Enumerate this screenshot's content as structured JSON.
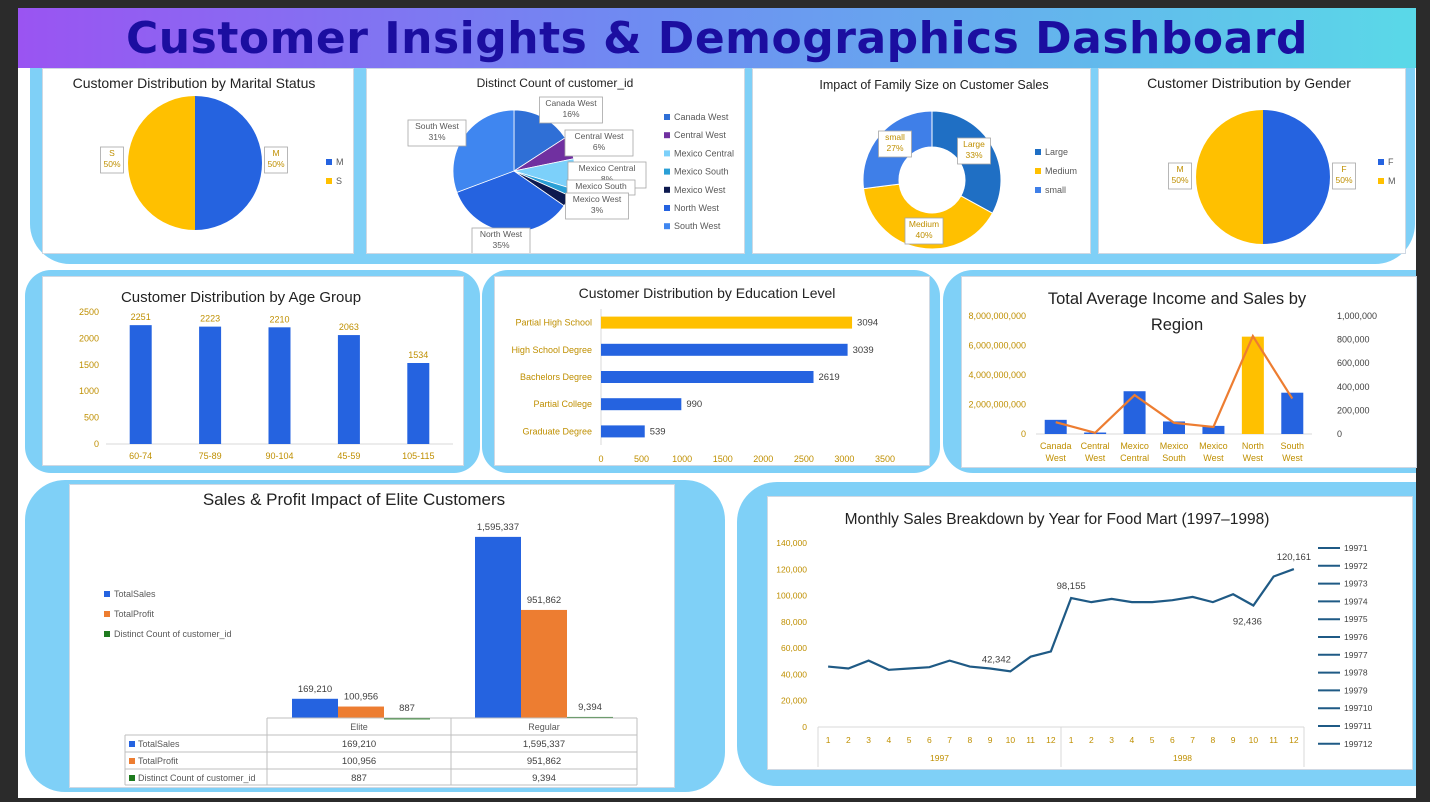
{
  "header": {
    "title": "Customer Insights & Demographics Dashboard"
  },
  "colors": {
    "blue": "#2563e0",
    "orange": "#ed7d31",
    "gold": "#ffc000",
    "green": "#1e7a1e",
    "navy": "#1f5a85"
  },
  "chart_data": [
    {
      "id": "marital",
      "type": "pie",
      "title": "Customer Distribution by Marital Status",
      "labels": [
        "M",
        "S"
      ],
      "values": [
        50,
        50
      ],
      "data_labels": [
        {
          "name": "M",
          "pct": "50%"
        },
        {
          "name": "S",
          "pct": "50%"
        }
      ],
      "legend": [
        "M",
        "S"
      ],
      "legend_position": "right"
    },
    {
      "id": "region_count",
      "type": "pie",
      "title": "Distinct Count of customer_id",
      "labels": [
        "Canada West",
        "Central West",
        "Mexico Central",
        "Mexico South",
        "Mexico West",
        "North West",
        "South West"
      ],
      "values": [
        16,
        6,
        8,
        2,
        3,
        35,
        31
      ],
      "data_labels": [
        {
          "name": "Canada West",
          "pct": "16%"
        },
        {
          "name": "Central West",
          "pct": "6%"
        },
        {
          "name": "Mexico Central",
          "pct": "8%"
        },
        {
          "name": "Mexico South",
          "pct": ""
        },
        {
          "name": "Mexico West",
          "pct": "3%"
        },
        {
          "name": "North West",
          "pct": "35%"
        },
        {
          "name": "South West",
          "pct": "31%"
        }
      ],
      "legend": [
        "Canada West",
        "Central West",
        "Mexico Central",
        "Mexico South",
        "Mexico West",
        "North West",
        "South West"
      ],
      "legend_position": "right"
    },
    {
      "id": "family",
      "type": "pie",
      "title": "Impact of Family Size on Customer Sales",
      "labels": [
        "Large",
        "Medium",
        "small"
      ],
      "values": [
        33,
        40,
        27
      ],
      "data_labels": [
        {
          "name": "Large",
          "pct": "33%"
        },
        {
          "name": "Medium",
          "pct": "40%"
        },
        {
          "name": "small",
          "pct": "27%"
        }
      ],
      "legend": [
        "Large",
        "Medium",
        "small"
      ],
      "legend_position": "right"
    },
    {
      "id": "gender",
      "type": "pie",
      "title": "Customer Distribution by Gender",
      "labels": [
        "F",
        "M"
      ],
      "values": [
        50,
        50
      ],
      "data_labels": [
        {
          "name": "F",
          "pct": "50%"
        },
        {
          "name": "M",
          "pct": "50%"
        }
      ],
      "legend": [
        "F",
        "M"
      ],
      "legend_position": "right"
    },
    {
      "id": "age",
      "type": "bar",
      "title": "Customer Distribution by Age Group",
      "categories": [
        "60-74",
        "75-89",
        "90-104",
        "45-59",
        "105-115"
      ],
      "values": [
        2251,
        2223,
        2210,
        2063,
        1534
      ],
      "ylim": [
        0,
        2500
      ],
      "yticks": [
        "0",
        "500",
        "1000",
        "1500",
        "2000",
        "2500"
      ]
    },
    {
      "id": "education",
      "type": "bar",
      "orientation": "horizontal",
      "title": "Customer Distribution by Education Level",
      "categories": [
        "Partial High School",
        "High School Degree",
        "Bachelors Degree",
        "Partial College",
        "Graduate Degree"
      ],
      "values": [
        3094,
        3039,
        2619,
        990,
        539
      ],
      "xlim": [
        0,
        3500
      ],
      "xticks": [
        "0",
        "500",
        "1000",
        "1500",
        "2000",
        "2500",
        "3000",
        "3500"
      ]
    },
    {
      "id": "income_region",
      "type": "bar",
      "title": "Total Average Income and Sales by Region",
      "categories": [
        "Canada West",
        "Central West",
        "Mexico Central",
        "Mexico South",
        "Mexico West",
        "North West",
        "South West"
      ],
      "bars": [
        960000000,
        100000000,
        2900000000,
        850000000,
        550000000,
        6600000000,
        2800000000
      ],
      "line": [
        100000,
        10000,
        330000,
        95000,
        60000,
        830000,
        300000
      ],
      "y_left": [
        0,
        8000000000
      ],
      "y_right": [
        0,
        1000000
      ],
      "yticks_left": [
        "0",
        "2,000,000,000",
        "4,000,000,000",
        "6,000,000,000",
        "8,000,000,000"
      ],
      "yticks_right": [
        "0",
        "200,000",
        "400,000",
        "600,000",
        "800,000",
        "1,000,000"
      ]
    },
    {
      "id": "elite",
      "type": "bar",
      "title": "Sales & Profit Impact of Elite Customers",
      "categories": [
        "Elite",
        "Regular"
      ],
      "series": [
        {
          "name": "TotalSales",
          "values": [
            169210,
            1595337
          ],
          "labels": [
            "169,210",
            "1,595,337"
          ]
        },
        {
          "name": "TotalProfit",
          "values": [
            100956,
            951862
          ],
          "labels": [
            "100,956",
            "951,862"
          ]
        },
        {
          "name": "Distinct Count of customer_id",
          "values": [
            887,
            9394
          ],
          "labels": [
            "887",
            "9,394"
          ]
        }
      ],
      "ylim": [
        0,
        1700000
      ],
      "legend_position": "left"
    },
    {
      "id": "monthly",
      "type": "line",
      "title": "Monthly Sales Breakdown by Year for Food Mart (1997–1998)",
      "months": [
        "1",
        "2",
        "3",
        "4",
        "5",
        "6",
        "7",
        "8",
        "9",
        "10",
        "11",
        "12",
        "1",
        "2",
        "3",
        "4",
        "5",
        "6",
        "7",
        "8",
        "9",
        "10",
        "11",
        "12"
      ],
      "years": [
        "1997",
        "1998"
      ],
      "values": [
        46000,
        44500,
        50500,
        43500,
        44500,
        45500,
        50500,
        46000,
        44500,
        42342,
        53500,
        57500,
        98155,
        95000,
        97500,
        95000,
        95000,
        96500,
        99000,
        95000,
        101000,
        92436,
        114500,
        120161
      ],
      "point_labels": [
        {
          "index": 9,
          "text": "42,342"
        },
        {
          "index": 12,
          "text": "98,155"
        },
        {
          "index": 21,
          "text": "92,436"
        },
        {
          "index": 23,
          "text": "120,161"
        }
      ],
      "ylim": [
        0,
        140000
      ],
      "yticks": [
        "0",
        "20,000",
        "40,000",
        "60,000",
        "80,000",
        "100,000",
        "120,000",
        "140,000"
      ],
      "legend": [
        "19971",
        "19972",
        "19973",
        "19974",
        "19975",
        "19976",
        "19977",
        "19978",
        "19979",
        "199710",
        "199711",
        "199712"
      ]
    }
  ]
}
